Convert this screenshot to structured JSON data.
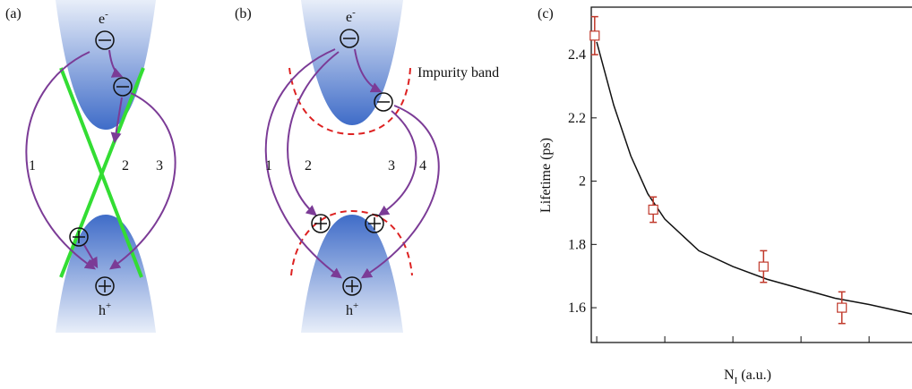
{
  "panel_a": {
    "label": "(a)",
    "electron": {
      "base": "e",
      "sup": "-"
    },
    "hole": {
      "base": "h",
      "sup": "+"
    },
    "paths": [
      "1",
      "2",
      "3"
    ]
  },
  "panel_b": {
    "label": "(b)",
    "electron": {
      "base": "e",
      "sup": "-"
    },
    "hole": {
      "base": "h",
      "sup": "+"
    },
    "impurity": "Impurity band",
    "paths": [
      "1",
      "2",
      "3",
      "4"
    ]
  },
  "chart_data": {
    "type": "scatter",
    "label": "(c)",
    "ylabel": "Lifetime (ps)",
    "xlabel": {
      "main": "N",
      "sub": "I",
      "rest": " (a.u.)"
    },
    "xlim": [
      -0.08,
      4.63
    ],
    "xticks": [
      0,
      1,
      2,
      3,
      4
    ],
    "ylim": [
      1.49,
      2.55
    ],
    "yticks": [
      1.6,
      1.8,
      2.0,
      2.2,
      2.4
    ],
    "points": {
      "color": "#c0392b",
      "x": [
        -0.03,
        0.83,
        2.45,
        3.6
      ],
      "values": [
        2.46,
        1.91,
        1.73,
        1.6
      ],
      "errors": [
        0.06,
        0.04,
        0.05,
        0.05
      ]
    },
    "fit": {
      "color": "#111111",
      "x": [
        0,
        0.25,
        0.5,
        0.75,
        1,
        1.5,
        2,
        2.5,
        3,
        3.5,
        4,
        4.63
      ],
      "values": [
        2.44,
        2.24,
        2.08,
        1.96,
        1.88,
        1.78,
        1.73,
        1.69,
        1.66,
        1.63,
        1.61,
        1.58
      ]
    }
  }
}
